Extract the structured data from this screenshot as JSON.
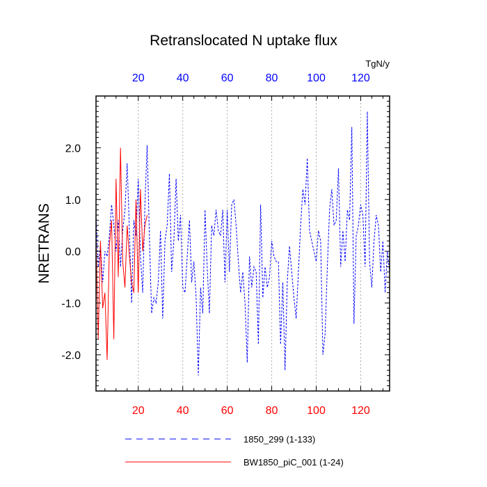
{
  "chart_data": {
    "type": "line",
    "title": "Retranslocated N uptake flux",
    "ylabel": "NRETRANS",
    "top_axis_unit": "TgN/y",
    "xlim": [
      1,
      133
    ],
    "ylim": [
      -2.7,
      3.0
    ],
    "x_ticks": [
      20,
      40,
      60,
      80,
      100,
      120
    ],
    "x_tick_labels": [
      "20",
      "40",
      "60",
      "80",
      "100",
      "120"
    ],
    "y_ticks": [
      2.0,
      1.0,
      0.0,
      -1.0,
      -2.0
    ],
    "y_tick_labels": [
      "2.0",
      "1.0",
      "0.0",
      "-1.0",
      "-2.0"
    ],
    "x_grid": true,
    "colors": {
      "bottom_ticks": "#ff0000",
      "top_ticks": "#0000ff",
      "series_1850_299": "#0000ff",
      "series_bw1850": "#ff0000",
      "grid": "#aaaaaa"
    },
    "legend_placement": "bottom",
    "series": [
      {
        "name": "1850_299 (1-133)",
        "color": "#0000ff",
        "style": "dashed",
        "x_start": 1,
        "values": [
          0.7,
          -0.3,
          0.1,
          -0.6,
          0.0,
          -0.1,
          0.3,
          0.9,
          0.5,
          0.0,
          0.6,
          -0.3,
          0.4,
          0.8,
          1.7,
          0.4,
          -1.0,
          0.6,
          0.3,
          1.4,
          -0.1,
          -0.8,
          0.9,
          2.05,
          0.3,
          -1.2,
          -0.9,
          -1.0,
          -0.6,
          0.4,
          -1.3,
          0.2,
          0.5,
          1.5,
          -0.4,
          0.2,
          1.4,
          0.2,
          0.7,
          -0.7,
          -0.8,
          -0.1,
          0.6,
          -0.6,
          -0.2,
          -0.9,
          -2.4,
          -0.7,
          -1.2,
          0.8,
          -0.3,
          -1.2,
          0.5,
          0.3,
          0.8,
          0.4,
          0.3,
          0.8,
          -0.6,
          0.8,
          -0.4,
          0.9,
          1.0,
          0.5,
          -0.2,
          -0.8,
          -0.4,
          -1.0,
          -2.15,
          -0.1,
          -0.7,
          -0.3,
          -0.4,
          -1.8,
          0.9,
          -0.9,
          -0.3,
          -0.7,
          -0.5,
          0.2,
          -0.1,
          -0.2,
          -0.2,
          -1.8,
          -0.6,
          -2.3,
          -0.6,
          0.1,
          -0.4,
          -0.9,
          -1.3,
          -0.4,
          0.5,
          1.2,
          0.9,
          1.8,
          0.4,
          0.2,
          0.0,
          -0.2,
          0.4,
          0.2,
          -2.0,
          -1.6,
          -0.3,
          0.8,
          1.2,
          0.5,
          0.6,
          1.6,
          -0.3,
          0.4,
          -0.2,
          0.8,
          0.6,
          2.4,
          -1.4,
          0.3,
          0.5,
          0.9,
          0.7,
          -0.3,
          2.7,
          -0.2,
          -0.7,
          0.2,
          0.7,
          0.5,
          -0.4,
          0.2,
          -0.8,
          0.0,
          -0.4
        ]
      },
      {
        "name": "BW1850_piC_001 (1-24)",
        "color": "#ff0000",
        "style": "solid",
        "x_start": 1,
        "values": [
          0.3,
          -1.7,
          0.2,
          -1.1,
          -0.8,
          -2.1,
          0.1,
          0.6,
          -1.7,
          1.4,
          -0.5,
          2.0,
          -0.2,
          -0.7,
          0.5,
          -0.1,
          -0.6,
          -0.8,
          1.0,
          -0.8,
          1.2,
          0.0,
          0.5,
          0.7
        ]
      }
    ],
    "legend": [
      {
        "label": "1850_299 (1-133)"
      },
      {
        "label": "BW1850_piC_001 (1-24)"
      }
    ]
  }
}
